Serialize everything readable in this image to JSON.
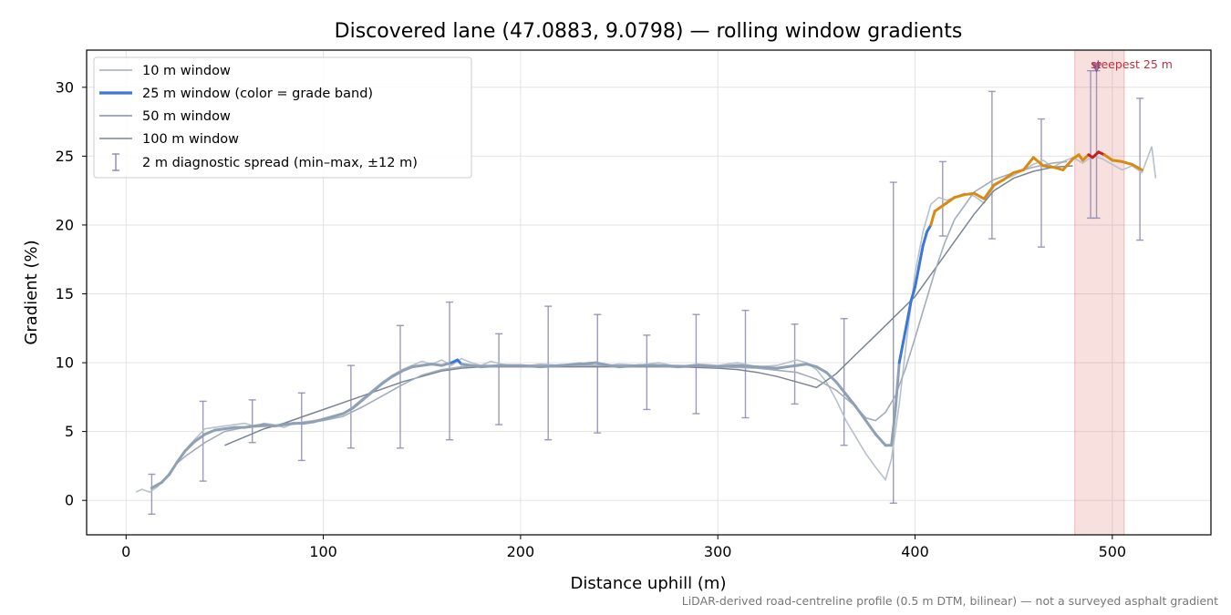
{
  "chart_data": {
    "type": "line",
    "title": "Discovered lane (47.0883, 9.0798) — rolling window gradients",
    "xlabel": "Distance uphill (m)",
    "ylabel": "Gradient (%)",
    "xlim": [
      -20,
      550
    ],
    "ylim": [
      -2.5,
      32.7
    ],
    "x_ticks": [
      0,
      100,
      200,
      300,
      400,
      500
    ],
    "y_ticks": [
      0,
      5,
      10,
      15,
      20,
      25,
      30
    ],
    "grid": true,
    "legend_position": "top-left",
    "footnote": "LiDAR-derived road-centreline profile (0.5 m DTM, bilinear) — not a surveyed asphalt gradient",
    "highlight": {
      "x_range": [
        481,
        506
      ],
      "label": "steepest 25 m",
      "marker": {
        "x": 492,
        "y": 31.4
      },
      "color": "#d9534f"
    },
    "series": [
      {
        "name": "10 m window",
        "color": "#b8c0cc",
        "x": [
          5,
          8,
          12,
          16,
          20,
          24,
          28,
          32,
          36,
          40,
          45,
          50,
          55,
          60,
          65,
          70,
          75,
          80,
          85,
          90,
          95,
          100,
          105,
          110,
          115,
          120,
          125,
          130,
          135,
          140,
          145,
          150,
          155,
          160,
          165,
          170,
          175,
          180,
          185,
          190,
          200,
          210,
          220,
          230,
          240,
          250,
          260,
          270,
          280,
          290,
          300,
          310,
          320,
          330,
          340,
          345,
          350,
          355,
          360,
          365,
          370,
          375,
          380,
          385,
          388,
          392,
          396,
          400,
          404,
          408,
          412,
          416,
          420,
          425,
          430,
          435,
          440,
          445,
          450,
          455,
          460,
          465,
          470,
          475,
          480,
          485,
          490,
          495,
          500,
          505,
          510,
          515,
          520,
          522
        ],
        "y": [
          0.6,
          0.8,
          0.6,
          1.0,
          1.6,
          2.4,
          3.2,
          4.0,
          4.6,
          5.2,
          5.3,
          5.4,
          5.5,
          5.6,
          5.4,
          5.6,
          5.5,
          5.3,
          5.6,
          5.7,
          5.8,
          5.9,
          6.0,
          6.3,
          6.8,
          7.4,
          8.0,
          8.6,
          9.1,
          9.5,
          9.8,
          10.1,
          9.9,
          10.2,
          9.8,
          10.3,
          10.0,
          9.8,
          10.1,
          9.9,
          9.7,
          9.9,
          9.8,
          10.0,
          9.7,
          9.9,
          9.8,
          10.0,
          9.7,
          9.9,
          9.8,
          10.0,
          9.7,
          9.8,
          10.2,
          10.0,
          9.5,
          8.6,
          7.3,
          5.8,
          4.6,
          3.4,
          2.4,
          1.5,
          3.0,
          7.0,
          12.0,
          16.5,
          19.5,
          21.5,
          22.0,
          21.8,
          22.0,
          22.3,
          22.1,
          21.6,
          22.8,
          23.3,
          23.6,
          24.0,
          24.4,
          24.7,
          24.2,
          24.6,
          24.9,
          24.5,
          25.0,
          24.8,
          24.4,
          24.0,
          24.3,
          23.8,
          25.7,
          23.4
        ]
      },
      {
        "name": "25 m window (color = grade band)",
        "color": "#3a78d4",
        "band_colors": {
          "low": "#3a78d4",
          "mid": "#8fa0b4",
          "high": "#d98a10",
          "max": "#c0202a"
        },
        "x": [
          13,
          18,
          22,
          26,
          30,
          35,
          40,
          45,
          50,
          55,
          60,
          65,
          70,
          75,
          80,
          85,
          90,
          95,
          100,
          105,
          110,
          115,
          120,
          125,
          130,
          135,
          140,
          145,
          150,
          155,
          160,
          165,
          168,
          170,
          175,
          180,
          190,
          200,
          210,
          220,
          230,
          238,
          245,
          250,
          260,
          270,
          280,
          290,
          300,
          310,
          320,
          330,
          340,
          345,
          350,
          355,
          360,
          365,
          370,
          375,
          380,
          385,
          388,
          390,
          392,
          394,
          396,
          398,
          400,
          402,
          404,
          406,
          408,
          410,
          412,
          414,
          416,
          418,
          420,
          425,
          430,
          435,
          440,
          445,
          450,
          455,
          460,
          465,
          470,
          475,
          480,
          483,
          485,
          488,
          490,
          493,
          496,
          500,
          505,
          510,
          515
        ],
        "y": [
          0.9,
          1.3,
          1.9,
          2.8,
          3.6,
          4.3,
          4.8,
          5.1,
          5.2,
          5.3,
          5.3,
          5.4,
          5.5,
          5.4,
          5.5,
          5.6,
          5.6,
          5.7,
          5.9,
          6.1,
          6.3,
          6.7,
          7.3,
          7.9,
          8.5,
          9.0,
          9.4,
          9.7,
          9.8,
          9.9,
          9.8,
          10.0,
          10.2,
          9.9,
          9.8,
          9.7,
          9.8,
          9.8,
          9.7,
          9.8,
          9.9,
          10.0,
          9.8,
          9.7,
          9.8,
          9.8,
          9.7,
          9.8,
          9.7,
          9.8,
          9.7,
          9.6,
          9.8,
          9.9,
          9.7,
          9.3,
          8.6,
          7.7,
          6.8,
          5.8,
          4.8,
          4.0,
          4.0,
          6.5,
          10.0,
          11.5,
          13.0,
          14.5,
          15.5,
          17.0,
          18.5,
          19.5,
          20.0,
          21.0,
          21.2,
          21.4,
          21.6,
          21.8,
          22.0,
          22.2,
          22.3,
          21.9,
          22.9,
          23.3,
          23.8,
          24.0,
          24.9,
          24.3,
          24.2,
          24.0,
          24.8,
          25.1,
          24.7,
          25.1,
          24.9,
          25.3,
          25.1,
          24.7,
          24.6,
          24.4,
          24.0
        ]
      },
      {
        "name": "50 m window",
        "color": "#a2acbd",
        "x": [
          25,
          30,
          40,
          50,
          60,
          75,
          90,
          100,
          110,
          120,
          130,
          140,
          150,
          160,
          170,
          180,
          190,
          200,
          220,
          240,
          260,
          280,
          300,
          320,
          340,
          350,
          360,
          370,
          375,
          380,
          385,
          390,
          395,
          400,
          405,
          410,
          415,
          420,
          430,
          440,
          450,
          460,
          470,
          477
        ],
        "y": [
          2.6,
          3.2,
          4.2,
          5.0,
          5.3,
          5.4,
          5.6,
          5.8,
          6.1,
          6.8,
          7.6,
          8.4,
          9.1,
          9.5,
          9.7,
          9.8,
          9.8,
          9.8,
          9.8,
          9.8,
          9.8,
          9.8,
          9.7,
          9.6,
          9.3,
          8.8,
          8.0,
          6.8,
          6.0,
          5.8,
          6.4,
          7.6,
          9.5,
          11.8,
          14.2,
          16.6,
          18.7,
          20.4,
          22.4,
          23.3,
          23.8,
          24.2,
          24.5,
          24.6
        ]
      },
      {
        "name": "100 m window",
        "color": "#7a8495",
        "x": [
          50,
          60,
          70,
          80,
          90,
          100,
          110,
          120,
          130,
          140,
          150,
          160,
          170,
          180,
          190,
          200,
          220,
          240,
          260,
          280,
          300,
          310,
          320,
          330,
          340,
          350,
          360,
          370,
          380,
          390,
          400,
          410,
          420,
          430,
          440,
          450,
          460,
          470,
          480
        ],
        "y": [
          4.0,
          4.6,
          5.2,
          5.6,
          6.1,
          6.6,
          7.1,
          7.6,
          8.1,
          8.6,
          9.0,
          9.4,
          9.6,
          9.7,
          9.7,
          9.7,
          9.7,
          9.7,
          9.7,
          9.7,
          9.6,
          9.5,
          9.3,
          9.0,
          8.6,
          8.2,
          9.2,
          10.6,
          12.0,
          13.4,
          14.8,
          16.8,
          18.8,
          20.8,
          22.5,
          23.4,
          23.9,
          24.2,
          24.3
        ]
      },
      {
        "name": "2 m diagnostic spread (min–max, ±12 m)",
        "color": "#8a8aae",
        "points": [
          {
            "x": 13,
            "min": -1.0,
            "max": 1.9
          },
          {
            "x": 39,
            "min": 1.4,
            "max": 7.2
          },
          {
            "x": 64,
            "min": 4.2,
            "max": 7.3
          },
          {
            "x": 89,
            "min": 2.9,
            "max": 7.8
          },
          {
            "x": 114,
            "min": 3.8,
            "max": 9.8
          },
          {
            "x": 139,
            "min": 3.8,
            "max": 12.7
          },
          {
            "x": 164,
            "min": 4.4,
            "max": 14.4
          },
          {
            "x": 189,
            "min": 5.5,
            "max": 12.1
          },
          {
            "x": 214,
            "min": 4.4,
            "max": 14.1
          },
          {
            "x": 239,
            "min": 4.9,
            "max": 13.5
          },
          {
            "x": 264,
            "min": 6.6,
            "max": 12.0
          },
          {
            "x": 289,
            "min": 6.3,
            "max": 13.5
          },
          {
            "x": 314,
            "min": 6.0,
            "max": 13.8
          },
          {
            "x": 339,
            "min": 7.0,
            "max": 12.8
          },
          {
            "x": 364,
            "min": 4.0,
            "max": 13.2
          },
          {
            "x": 389,
            "min": -0.2,
            "max": 23.1
          },
          {
            "x": 414,
            "min": 19.2,
            "max": 24.6
          },
          {
            "x": 439,
            "min": 19.0,
            "max": 29.7
          },
          {
            "x": 464,
            "min": 18.4,
            "max": 27.7
          },
          {
            "x": 489,
            "min": 20.5,
            "max": 31.2
          },
          {
            "x": 492,
            "min": 20.5,
            "max": 31.2
          },
          {
            "x": 514,
            "min": 18.9,
            "max": 29.2
          }
        ]
      }
    ]
  }
}
